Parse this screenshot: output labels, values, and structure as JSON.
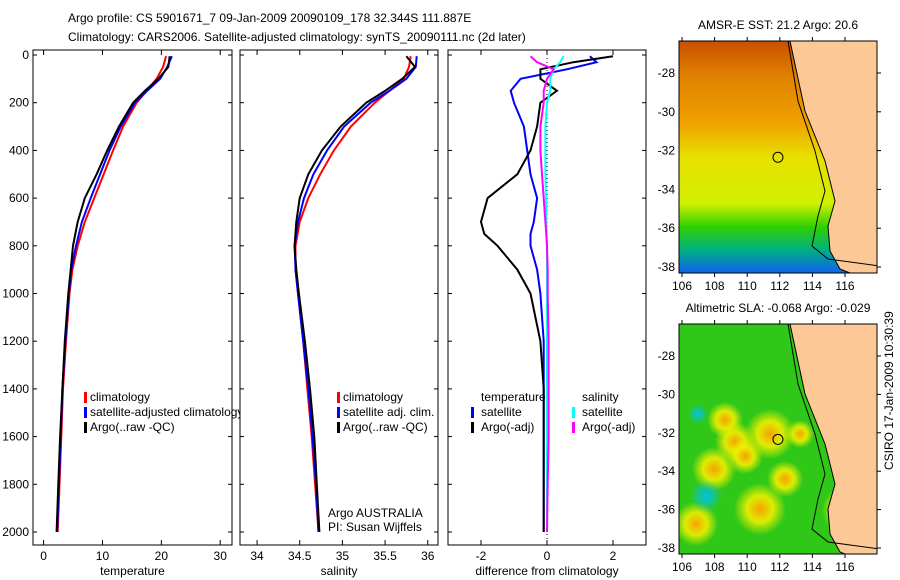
{
  "title_line1": "Argo profile: CS 5901671_7 09-Jan-2009 20090109_178 32.344S 111.887E",
  "title_line2": "Climatology: CARS2006. Satellite-adjusted climatology: synTS_20090111.nc (2d later)",
  "credit": "CSIRO 17-Jan-2009 10:30:39",
  "colors": {
    "climatology": "#ff0000",
    "satellite": "#0000ff",
    "argo": "#000000",
    "sal_satellite": "#00ffff",
    "sal_argo": "#ff00ff",
    "land": "#fcc896"
  },
  "chart_data": [
    {
      "type": "line",
      "id": "temperature",
      "xlabel": "temperature",
      "ylabel": "",
      "xlim": [
        -1.8,
        32
      ],
      "ylim": [
        2000,
        0
      ],
      "xticks": [
        "0",
        "10",
        "20",
        "30"
      ],
      "xtick_values": [
        0,
        10,
        20,
        30
      ],
      "yticks": [
        "0",
        "200",
        "400",
        "600",
        "800",
        "1000",
        "1200",
        "1400",
        "1600",
        "1800",
        "2000"
      ],
      "ytick_values": [
        0,
        200,
        400,
        600,
        800,
        1000,
        1200,
        1400,
        1600,
        1800,
        2000
      ],
      "legend": [
        "climatology",
        "satellite-adjusted climatology",
        "Argo(..raw -QC)"
      ],
      "depth": [
        5,
        50,
        100,
        150,
        200,
        300,
        400,
        500,
        600,
        700,
        800,
        900,
        1000,
        1200,
        1400,
        1600,
        1800,
        2000
      ],
      "series": [
        {
          "name": "climatology",
          "color": "#ff0000",
          "values": [
            20.8,
            20.3,
            19.2,
            17.5,
            15.8,
            13.5,
            11.8,
            10.2,
            8.6,
            7.0,
            5.8,
            4.9,
            4.4,
            3.8,
            3.3,
            3.0,
            2.7,
            2.4
          ]
        },
        {
          "name": "satellite-adjusted climatology",
          "color": "#0000ff",
          "values": [
            21.8,
            21.0,
            19.8,
            17.6,
            15.5,
            13.1,
            11.2,
            9.6,
            8.0,
            6.5,
            5.5,
            4.7,
            4.3,
            3.7,
            3.2,
            2.9,
            2.6,
            2.3
          ]
        },
        {
          "name": "Argo(..raw -QC)",
          "color": "#000000",
          "values": [
            21.4,
            21.2,
            19.5,
            17.2,
            15.2,
            12.8,
            10.8,
            9.0,
            7.0,
            5.8,
            5.0,
            4.6,
            4.2,
            3.6,
            3.2,
            2.8,
            2.5,
            2.2
          ]
        }
      ]
    },
    {
      "type": "line",
      "id": "salinity",
      "xlabel": "salinity",
      "xlim": [
        33.8,
        36.12
      ],
      "ylim": [
        2000,
        0
      ],
      "xticks": [
        "34",
        "34.5",
        "35",
        "35.5",
        "36"
      ],
      "xtick_values": [
        34,
        34.5,
        35,
        35.5,
        36
      ],
      "legend": [
        "climatology",
        "satellite adj. clim.",
        "Argo(..raw -QC)"
      ],
      "annotation": [
        "Argo AUSTRALIA",
        "PI: Susan Wijffels"
      ],
      "depth": [
        5,
        50,
        100,
        150,
        200,
        300,
        400,
        500,
        600,
        700,
        800,
        900,
        1000,
        1200,
        1400,
        1600,
        1800,
        2000
      ],
      "series": [
        {
          "name": "climatology",
          "color": "#ff0000",
          "values": [
            35.8,
            35.78,
            35.72,
            35.55,
            35.38,
            35.1,
            34.9,
            34.74,
            34.6,
            34.5,
            34.45,
            34.45,
            34.48,
            34.54,
            34.59,
            34.64,
            34.68,
            34.72
          ]
        },
        {
          "name": "satellite adj. clim.",
          "color": "#0000ff",
          "values": [
            35.87,
            35.86,
            35.75,
            35.55,
            35.33,
            35.02,
            34.82,
            34.66,
            34.55,
            34.48,
            34.44,
            34.45,
            34.48,
            34.54,
            34.6,
            34.65,
            34.69,
            34.72
          ]
        },
        {
          "name": "Argo(..raw -QC)",
          "color": "#000000",
          "values": [
            35.75,
            35.85,
            35.7,
            35.5,
            35.28,
            34.98,
            34.76,
            34.6,
            34.5,
            34.46,
            34.44,
            34.46,
            34.49,
            34.56,
            34.62,
            34.67,
            34.7,
            34.73
          ]
        }
      ]
    },
    {
      "type": "line",
      "id": "difference",
      "xlabel": "difference from climatology",
      "xlim": [
        -3,
        3
      ],
      "ylim": [
        2000,
        0
      ],
      "xticks": [
        "-2",
        "0",
        "2"
      ],
      "xtick_values": [
        -2,
        0,
        2
      ],
      "legend_temperature": {
        "title": "temperature",
        "items": [
          "satellite",
          "Argo(-adj)"
        ]
      },
      "legend_salinity": {
        "title": "salinity",
        "items": [
          "satellite",
          "Argo(-adj)"
        ]
      },
      "depth": [
        5,
        30,
        60,
        100,
        150,
        200,
        300,
        400,
        500,
        600,
        700,
        750,
        800,
        900,
        1000,
        1200,
        1400,
        1600,
        1800,
        2000
      ],
      "series": [
        {
          "name": "temperature satellite",
          "color": "#0000ff",
          "values": [
            1.3,
            1.5,
            0.6,
            -0.8,
            -1.1,
            -1.0,
            -0.7,
            -0.6,
            -0.5,
            -0.3,
            -0.4,
            -0.5,
            -0.5,
            -0.3,
            -0.2,
            -0.1,
            -0.1,
            -0.1,
            -0.1,
            -0.1
          ]
        },
        {
          "name": "temperature Argo(-adj)",
          "color": "#000000",
          "values": [
            2.0,
            0.8,
            -0.2,
            -0.2,
            0.3,
            -0.2,
            -0.3,
            -0.5,
            -0.9,
            -1.8,
            -2.0,
            -1.9,
            -1.5,
            -0.9,
            -0.5,
            -0.2,
            -0.1,
            -0.1,
            -0.1,
            -0.1
          ]
        },
        {
          "name": "salinity satellite",
          "color": "#00ffff",
          "values": [
            0.5,
            0.4,
            0.2,
            0.1,
            0.1,
            0.0,
            -0.05,
            -0.05,
            -0.05,
            -0.03,
            -0.02,
            -0.02,
            0.0,
            0.0,
            0.0,
            0.0,
            0.0,
            0.0,
            0.0,
            0.0
          ]
        },
        {
          "name": "salinity Argo(-adj)",
          "color": "#ff00ff",
          "values": [
            -0.5,
            -0.3,
            0.2,
            0.0,
            -0.1,
            -0.1,
            -0.2,
            -0.2,
            -0.15,
            -0.1,
            -0.05,
            -0.02,
            0.0,
            0.02,
            0.02,
            0.05,
            0.05,
            0.05,
            0.02,
            0.0
          ]
        }
      ]
    }
  ],
  "maps": [
    {
      "title": "AMSR-E SST: 21.2 Argo: 20.6",
      "xticks": [
        "106",
        "108",
        "110",
        "112",
        "114",
        "116"
      ],
      "yticks": [
        "-28",
        "-30",
        "-32",
        "-34",
        "-36",
        "-38"
      ],
      "argo_lon": 111.887,
      "argo_lat": -32.344
    },
    {
      "title": "Altimetric SLA: -0.068 Argo: -0.029",
      "xticks": [
        "106",
        "108",
        "110",
        "112",
        "114",
        "116"
      ],
      "yticks": [
        "-28",
        "-30",
        "-32",
        "-34",
        "-36",
        "-38"
      ],
      "argo_lon": 111.887,
      "argo_lat": -32.344
    }
  ]
}
